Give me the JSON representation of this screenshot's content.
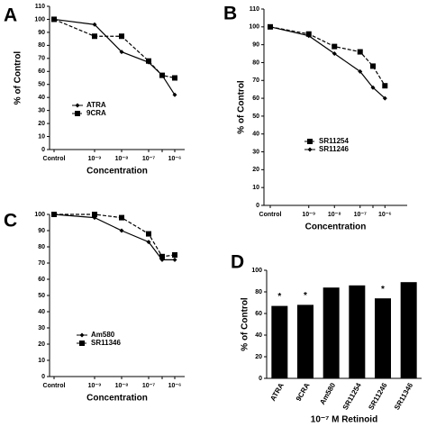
{
  "chart_data": [
    {
      "type": "line",
      "panel": "A",
      "xlabel": "Concentration",
      "ylabel": "% of Control",
      "categories": [
        "Control",
        "10⁻⁹",
        "10⁻⁸",
        "10⁻⁷",
        null,
        "10⁻⁶"
      ],
      "ylim": [
        0,
        110
      ],
      "yticks": [
        0,
        10,
        20,
        30,
        40,
        50,
        60,
        70,
        80,
        90,
        100,
        110
      ],
      "legend": "lower left",
      "series": [
        {
          "name": "ATRA",
          "color": "#000000",
          "marker": "diamond",
          "line_style": "solid",
          "values": [
            100,
            96,
            75,
            67,
            57,
            42
          ]
        },
        {
          "name": "9CRA",
          "color": "#000000",
          "marker": "square",
          "line_style": "dashed",
          "values": [
            100,
            87,
            87,
            68,
            57,
            55
          ]
        }
      ]
    },
    {
      "type": "line",
      "panel": "B",
      "xlabel": "Concentration",
      "ylabel": "% of Control",
      "categories": [
        "Control",
        "10⁻⁹",
        "10⁻⁸",
        "10⁻⁷",
        null,
        "10⁻⁶"
      ],
      "ylim": [
        0,
        110
      ],
      "yticks": [
        0,
        10,
        20,
        30,
        40,
        50,
        60,
        70,
        80,
        90,
        100,
        110
      ],
      "legend": "lower left",
      "series": [
        {
          "name": "SR11254",
          "color": "#000000",
          "marker": "square",
          "line_style": "dashed",
          "values": [
            100,
            96,
            89,
            86,
            78,
            67
          ]
        },
        {
          "name": "SR11246",
          "color": "#000000",
          "marker": "diamond",
          "line_style": "solid",
          "values": [
            100,
            95,
            85,
            75,
            66,
            60
          ]
        }
      ]
    },
    {
      "type": "line",
      "panel": "C",
      "xlabel": "Concentration",
      "categories": [
        "Control",
        "10⁻⁹",
        "10⁻⁸",
        "10⁻⁷",
        null,
        "10⁻⁶"
      ],
      "ylim": [
        0,
        100
      ],
      "yticks": [
        0,
        10,
        20,
        30,
        40,
        50,
        60,
        70,
        80,
        90,
        100
      ],
      "legend": "lower left",
      "series": [
        {
          "name": "Am580",
          "color": "#000000",
          "marker": "diamond",
          "line_style": "solid",
          "values": [
            100,
            98,
            90,
            83,
            72,
            72
          ]
        },
        {
          "name": "SR11346",
          "color": "#000000",
          "marker": "square",
          "line_style": "dashed",
          "values": [
            100,
            100,
            98,
            88,
            74,
            75
          ]
        }
      ]
    },
    {
      "type": "bar",
      "panel": "D",
      "xlabel": "10⁻⁷ M Retinoid",
      "ylabel": "% of Control",
      "categories": [
        "ATRA",
        "9CRA",
        "Am580",
        "SR11254",
        "SR11246",
        "SR11346"
      ],
      "values": [
        67,
        68,
        84,
        86,
        74,
        89
      ],
      "color": "#000000",
      "markers": [
        "*",
        "*",
        null,
        null,
        "*",
        null
      ],
      "ylim": [
        0,
        100
      ],
      "yticks": [
        0,
        20,
        40,
        60,
        80,
        100
      ]
    }
  ]
}
